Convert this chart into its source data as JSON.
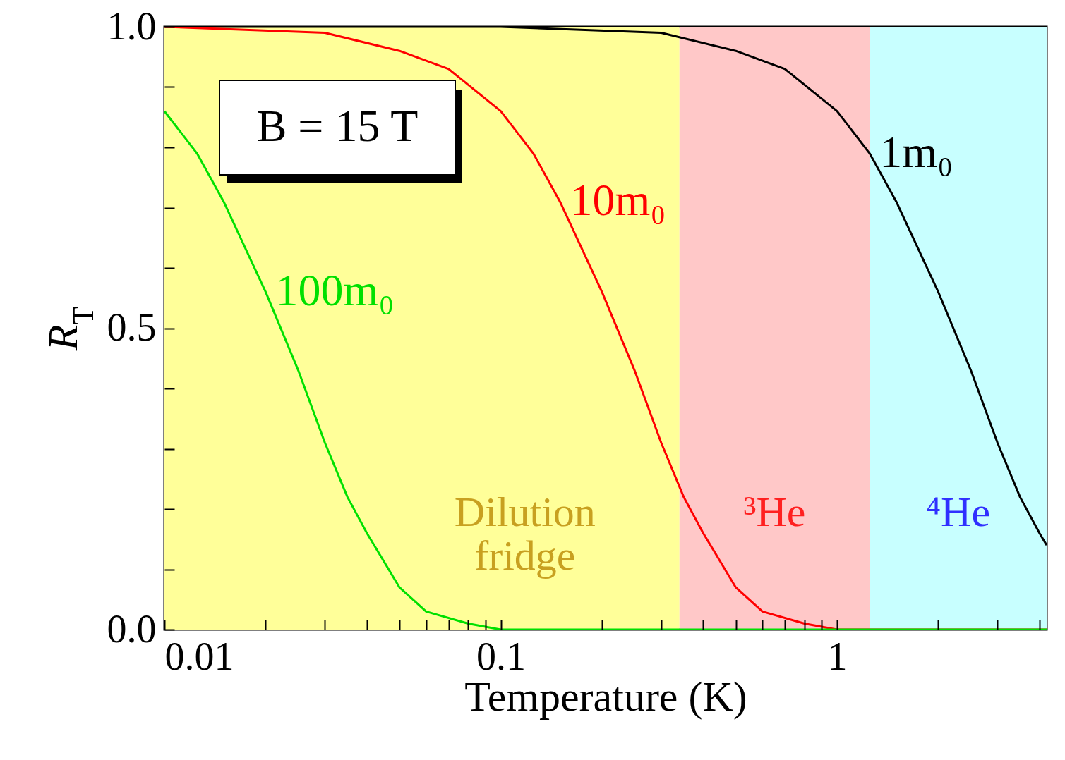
{
  "chart_data": {
    "type": "line",
    "xlabel": "Temperature (K)",
    "ylabel": "R$_{T}$",
    "log": "x",
    "grid": false,
    "marker": "none",
    "line_style": "solid",
    "xlim": [
      0.01,
      4.2
    ],
    "ylim": [
      0,
      1
    ],
    "xticks": [
      0.01,
      {
        "value": 0.02,
        "label": null
      },
      {
        "value": 0.03,
        "label": null
      },
      {
        "value": 0.04,
        "label": null
      },
      {
        "value": 0.05,
        "label": null
      },
      {
        "value": 0.06,
        "label": null
      },
      {
        "value": 0.07,
        "label": null
      },
      {
        "value": 0.08,
        "label": null
      },
      {
        "value": 0.09,
        "label": null
      },
      0.1,
      {
        "value": 0.2,
        "label": null
      },
      {
        "value": 0.3,
        "label": null
      },
      {
        "value": 0.4,
        "label": null
      },
      {
        "value": 0.5,
        "label": null
      },
      {
        "value": 0.6,
        "label": null
      },
      {
        "value": 0.7,
        "label": null
      },
      {
        "value": 0.8,
        "label": null
      },
      {
        "value": 0.9,
        "label": null
      },
      1,
      {
        "value": 2,
        "label": null
      },
      {
        "value": 3,
        "label": null
      },
      {
        "value": 4,
        "label": null
      }
    ],
    "yticks": [
      {
        "value": 0,
        "label": "0.0"
      },
      {
        "value": 0.1,
        "label": null
      },
      {
        "value": 0.2,
        "label": null
      },
      {
        "value": 0.3,
        "label": null
      },
      {
        "value": 0.4,
        "label": null
      },
      {
        "value": 0.5,
        "label": "0.5"
      },
      {
        "value": 0.6,
        "label": null
      },
      {
        "value": 0.7,
        "label": null
      },
      {
        "value": 0.8,
        "label": null
      },
      {
        "value": 0.9,
        "label": null
      },
      {
        "value": 1,
        "label": "1.0"
      }
    ],
    "series": [
      {
        "name": "1m₀",
        "color": "#000000",
        "x": [
          0.01,
          0.1,
          0.3,
          0.5,
          0.7,
          1.0,
          1.25,
          1.5,
          2.0,
          2.5,
          3.0,
          3.5,
          4.0,
          4.2
        ],
        "values": [
          1.0,
          1.0,
          0.99,
          0.96,
          0.93,
          0.86,
          0.79,
          0.71,
          0.56,
          0.43,
          0.31,
          0.22,
          0.16,
          0.14
        ]
      },
      {
        "name": "10m₀",
        "color": "#ff0000",
        "x": [
          0.01,
          0.03,
          0.05,
          0.07,
          0.1,
          0.125,
          0.15,
          0.2,
          0.25,
          0.3,
          0.35,
          0.4,
          0.5,
          0.6,
          0.8,
          1.0,
          4.2
        ],
        "values": [
          1.0,
          0.99,
          0.96,
          0.93,
          0.86,
          0.79,
          0.71,
          0.56,
          0.43,
          0.31,
          0.22,
          0.16,
          0.07,
          0.03,
          0.01,
          0.0,
          0.0
        ]
      },
      {
        "name": "100m₀",
        "color": "#00e000",
        "x": [
          0.01,
          0.0125,
          0.015,
          0.02,
          0.025,
          0.03,
          0.035,
          0.04,
          0.05,
          0.06,
          0.08,
          0.1,
          4.2
        ],
        "values": [
          0.86,
          0.79,
          0.71,
          0.56,
          0.43,
          0.31,
          0.22,
          0.16,
          0.07,
          0.03,
          0.01,
          0.0,
          0.0
        ]
      }
    ],
    "bands": [
      {
        "axis": "x",
        "from": 0.01,
        "to": 0.34,
        "label": "Dilution fridge",
        "color": "#ffff99"
      },
      {
        "axis": "x",
        "from": 0.34,
        "to": 1.25,
        "label": "³He",
        "color": "#ffc8c8"
      },
      {
        "axis": "x",
        "from": 1.25,
        "to": 4.2,
        "label": "⁴He",
        "color": "#c8ffff"
      }
    ],
    "annotations": [
      "B = 15 T"
    ]
  }
}
